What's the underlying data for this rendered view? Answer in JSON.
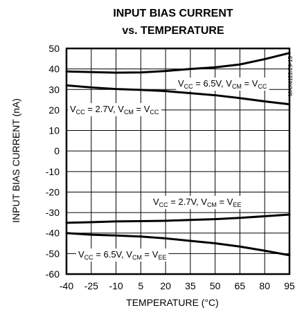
{
  "chart_data": {
    "type": "line",
    "title": "INPUT BIAS CURRENT",
    "subtitle": "vs. TEMPERATURE",
    "xlabel": "TEMPERATURE (°C)",
    "ylabel": "INPUT BIAS CURRENT (nA)",
    "xlim": [
      -40,
      95
    ],
    "ylim": [
      -60,
      50
    ],
    "x_ticks": [
      -40,
      -25,
      -10,
      5,
      20,
      35,
      50,
      65,
      80,
      95
    ],
    "y_ticks": [
      50,
      40,
      30,
      20,
      10,
      0,
      -10,
      -20,
      -30,
      -40,
      -50,
      -60
    ],
    "grid": true,
    "part_number": "MAX4122/29-15",
    "series": [
      {
        "label": "VCC = 6.5V, VCM = VCC",
        "x": [
          -40,
          -25,
          -10,
          5,
          20,
          35,
          50,
          65,
          80,
          95
        ],
        "y": [
          38.8,
          38.5,
          38.2,
          38.3,
          39.0,
          40.0,
          40.8,
          42.2,
          44.8,
          47.8
        ]
      },
      {
        "label": "VCC = 2.7V, VCM = VCC",
        "x": [
          -40,
          -25,
          -10,
          5,
          20,
          35,
          50,
          65,
          80,
          95
        ],
        "y": [
          32.0,
          31.0,
          30.2,
          29.8,
          29.2,
          28.2,
          27.2,
          25.8,
          24.2,
          22.8
        ]
      },
      {
        "label": "VCC = 2.7V, VCM = VEE",
        "x": [
          -40,
          -25,
          -10,
          5,
          20,
          35,
          50,
          65,
          80,
          95
        ],
        "y": [
          -35.0,
          -34.7,
          -34.3,
          -34.2,
          -34.0,
          -33.6,
          -33.2,
          -32.6,
          -31.8,
          -31.0
        ]
      },
      {
        "label": "VCC = 6.5V, VCM = VEE",
        "x": [
          -40,
          -25,
          -10,
          5,
          20,
          35,
          50,
          65,
          80,
          95
        ],
        "y": [
          -40.0,
          -40.8,
          -41.2,
          -41.7,
          -42.6,
          -43.8,
          -45.0,
          -46.6,
          -48.6,
          -50.8
        ]
      }
    ],
    "annotations": [
      {
        "series": 0,
        "vcc": "6.5V",
        "vcm": "CC",
        "text": "VCC = 6.5V, VCM = VCC"
      },
      {
        "series": 1,
        "vcc": "2.7V",
        "vcm": "CC",
        "text": "VCC = 2.7V, VCM = VCC"
      },
      {
        "series": 2,
        "vcc": "2.7V",
        "vcm": "EE",
        "text": "VCC = 2.7V, VCM = VEE"
      },
      {
        "series": 3,
        "vcc": "6.5V",
        "vcm": "EE",
        "text": "VCC = 6.5V, VCM = VEE"
      }
    ]
  }
}
